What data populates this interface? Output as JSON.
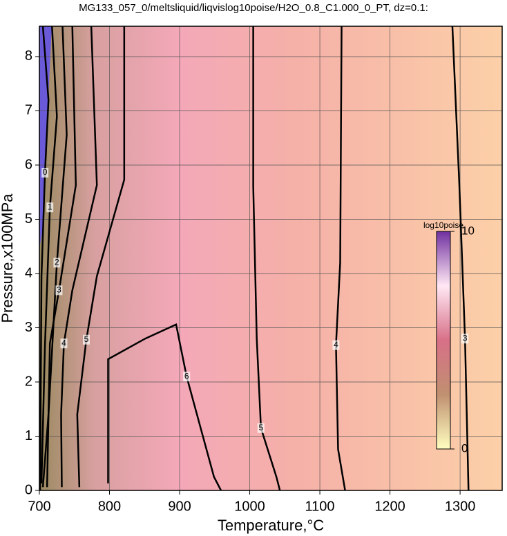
{
  "chart_data": {
    "type": "contour",
    "title": "MG133_057_0/meltsliquid/liqvislog10poise/H2O_0.8_C1.000_0_PT, dz=0.1:",
    "x_label": "Temperature,°C",
    "y_label": "Pressure,x100MPa",
    "xlim": [
      700,
      1360
    ],
    "ylim": [
      0,
      8.56
    ],
    "xticks": [
      700,
      800,
      900,
      1000,
      1100,
      1200,
      1300
    ],
    "yticks": [
      0,
      1,
      2,
      3,
      4,
      5,
      6,
      7,
      8
    ],
    "grid": true,
    "contour_color": "#000000",
    "contours": [
      {
        "level": 0,
        "x": [
          705,
          713,
          708,
          703,
          701
        ],
        "y": [
          8.56,
          7.2,
          5.86,
          3.95,
          0
        ]
      },
      {
        "level": 1,
        "x": [
          718,
          725,
          715,
          708,
          703
        ],
        "y": [
          8.56,
          6.9,
          5.22,
          2.68,
          0.13
        ]
      },
      {
        "level": 2,
        "x": [
          733,
          739,
          725,
          713,
          705
        ],
        "y": [
          8.56,
          6.56,
          4.2,
          1.4,
          0.06
        ]
      },
      {
        "level": 3,
        "x": [
          747,
          752,
          728,
          715,
          711
        ],
        "y": [
          8.56,
          5.63,
          3.69,
          2.71,
          0.06
        ]
      },
      {
        "level": 4,
        "x": [
          774,
          782,
          747,
          735,
          731,
          732
        ],
        "y": [
          8.56,
          5.63,
          3.69,
          2.71,
          1.4,
          0.06
        ]
      },
      {
        "level": 5,
        "x": [
          821,
          821,
          782,
          767,
          754,
          757
        ],
        "y": [
          8.56,
          5.73,
          3.95,
          2.78,
          1.4,
          0.06
        ]
      },
      {
        "level": 6,
        "x": [
          798,
          798,
          851,
          895,
          910,
          930,
          949,
          959
        ],
        "y": [
          0.13,
          2.42,
          2.8,
          3.06,
          2.1,
          1.15,
          0.25,
          0
        ]
      },
      {
        "level": 5,
        "x": [
          1005,
          1005,
          1010,
          1016,
          1038,
          1043
        ],
        "y": [
          8.56,
          5.61,
          2.8,
          1.15,
          0.25,
          0
        ]
      },
      {
        "level": 4,
        "x": [
          1131,
          1129,
          1123,
          1126,
          1136
        ],
        "y": [
          8.56,
          4.2,
          2.68,
          0.76,
          0
        ]
      },
      {
        "level": 3,
        "x": [
          1289,
          1299,
          1307,
          1312
        ],
        "y": [
          8.56,
          5.61,
          2.8,
          0
        ]
      }
    ],
    "colorbar": {
      "label": "log10poise",
      "lim": [
        0,
        10
      ],
      "ticks": [
        0,
        10
      ],
      "colormap": [
        "#ffffc0",
        "#c09070",
        "#d87088",
        "#ffe8f4",
        "#7030a0"
      ]
    }
  }
}
